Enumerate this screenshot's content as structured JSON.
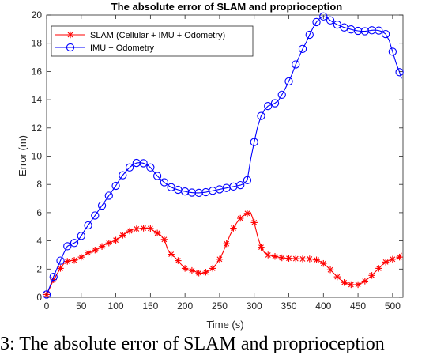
{
  "caption": "3: The absolute error of SLAM and proprioception",
  "chart_data": {
    "type": "line",
    "title": "The absolute error of SLAM and proprioception",
    "xlabel": "Time (s)",
    "ylabel": "Error (m)",
    "xlim": [
      0,
      515
    ],
    "ylim": [
      0,
      20
    ],
    "xticks": [
      0,
      50,
      100,
      150,
      200,
      250,
      300,
      350,
      400,
      450,
      500
    ],
    "yticks": [
      0,
      2,
      4,
      6,
      8,
      10,
      12,
      14,
      16,
      18,
      20
    ],
    "grid": false,
    "legend_location": "top-left",
    "series": [
      {
        "name": "SLAM (Cellular + IMU + Odometry)",
        "color": "#ff0000",
        "marker": "star",
        "x": [
          0,
          5,
          10,
          15,
          20,
          25,
          30,
          35,
          40,
          45,
          50,
          55,
          60,
          65,
          70,
          75,
          80,
          85,
          90,
          95,
          100,
          105,
          110,
          115,
          120,
          125,
          130,
          135,
          140,
          145,
          150,
          155,
          160,
          165,
          170,
          175,
          180,
          185,
          190,
          195,
          200,
          205,
          210,
          215,
          220,
          225,
          230,
          235,
          240,
          245,
          250,
          255,
          260,
          265,
          270,
          275,
          280,
          285,
          290,
          295,
          300,
          305,
          310,
          315,
          320,
          325,
          330,
          335,
          340,
          345,
          350,
          355,
          360,
          365,
          370,
          375,
          380,
          385,
          390,
          395,
          400,
          405,
          410,
          415,
          420,
          425,
          430,
          435,
          440,
          445,
          450,
          455,
          460,
          465,
          470,
          475,
          480,
          485,
          490,
          495,
          500,
          505,
          510,
          513
        ],
        "y": [
          0.2,
          0.7,
          1.25,
          1.65,
          2.05,
          2.4,
          2.55,
          2.6,
          2.62,
          2.68,
          2.85,
          3.0,
          3.15,
          3.25,
          3.35,
          3.45,
          3.6,
          3.75,
          3.85,
          3.95,
          4.05,
          4.2,
          4.4,
          4.55,
          4.7,
          4.82,
          4.85,
          4.88,
          4.9,
          4.92,
          4.88,
          4.7,
          4.55,
          4.4,
          4.1,
          3.4,
          3.05,
          2.85,
          2.6,
          2.3,
          2.05,
          1.95,
          1.9,
          1.82,
          1.72,
          1.7,
          1.78,
          1.9,
          2.05,
          2.35,
          2.7,
          3.2,
          3.8,
          4.4,
          4.9,
          5.3,
          5.6,
          5.8,
          5.95,
          6.0,
          5.3,
          4.3,
          3.55,
          3.15,
          3.0,
          2.95,
          2.9,
          2.85,
          2.8,
          2.78,
          2.76,
          2.75,
          2.74,
          2.73,
          2.72,
          2.72,
          2.72,
          2.7,
          2.65,
          2.55,
          2.4,
          2.2,
          1.95,
          1.7,
          1.45,
          1.25,
          1.05,
          0.95,
          0.9,
          0.88,
          0.9,
          1.0,
          1.15,
          1.35,
          1.55,
          1.8,
          2.05,
          2.3,
          2.5,
          2.62,
          2.7,
          2.72,
          2.85,
          3.15
        ]
      },
      {
        "name": "IMU + Odometry",
        "color": "#0000ff",
        "marker": "circle",
        "x": [
          0,
          5,
          10,
          15,
          20,
          25,
          30,
          35,
          40,
          45,
          50,
          55,
          60,
          65,
          70,
          75,
          80,
          85,
          90,
          95,
          100,
          105,
          110,
          115,
          120,
          125,
          130,
          135,
          140,
          145,
          150,
          155,
          160,
          165,
          170,
          175,
          180,
          185,
          190,
          195,
          200,
          205,
          210,
          215,
          220,
          225,
          230,
          235,
          240,
          245,
          250,
          255,
          260,
          265,
          270,
          275,
          280,
          285,
          290,
          295,
          300,
          305,
          310,
          315,
          320,
          325,
          330,
          335,
          340,
          345,
          350,
          355,
          360,
          365,
          370,
          375,
          380,
          385,
          390,
          395,
          400,
          405,
          410,
          415,
          420,
          425,
          430,
          435,
          440,
          445,
          450,
          455,
          460,
          465,
          470,
          475,
          480,
          485,
          490,
          495,
          500,
          505,
          510,
          513
        ],
        "y": [
          0.2,
          0.8,
          1.45,
          2.05,
          2.6,
          3.15,
          3.62,
          3.75,
          3.85,
          4.0,
          4.35,
          4.75,
          5.1,
          5.45,
          5.8,
          6.15,
          6.5,
          6.85,
          7.2,
          7.55,
          7.9,
          8.3,
          8.65,
          8.95,
          9.2,
          9.4,
          9.52,
          9.55,
          9.5,
          9.4,
          9.2,
          8.9,
          8.6,
          8.35,
          8.15,
          7.95,
          7.8,
          7.7,
          7.62,
          7.55,
          7.5,
          7.45,
          7.42,
          7.4,
          7.4,
          7.42,
          7.45,
          7.5,
          7.55,
          7.6,
          7.65,
          7.7,
          7.75,
          7.8,
          7.85,
          7.9,
          7.95,
          8.05,
          8.3,
          9.8,
          11.0,
          12.1,
          12.85,
          13.3,
          13.55,
          13.65,
          13.75,
          13.95,
          14.35,
          14.8,
          15.3,
          15.85,
          16.5,
          17.05,
          17.6,
          18.05,
          18.6,
          19.1,
          19.5,
          19.78,
          19.9,
          19.82,
          19.62,
          19.45,
          19.32,
          19.22,
          19.12,
          19.05,
          18.98,
          18.92,
          18.88,
          18.85,
          18.85,
          18.88,
          18.92,
          18.93,
          18.9,
          18.82,
          18.65,
          18.2,
          17.4,
          16.6,
          15.95,
          15.5
        ]
      }
    ]
  }
}
